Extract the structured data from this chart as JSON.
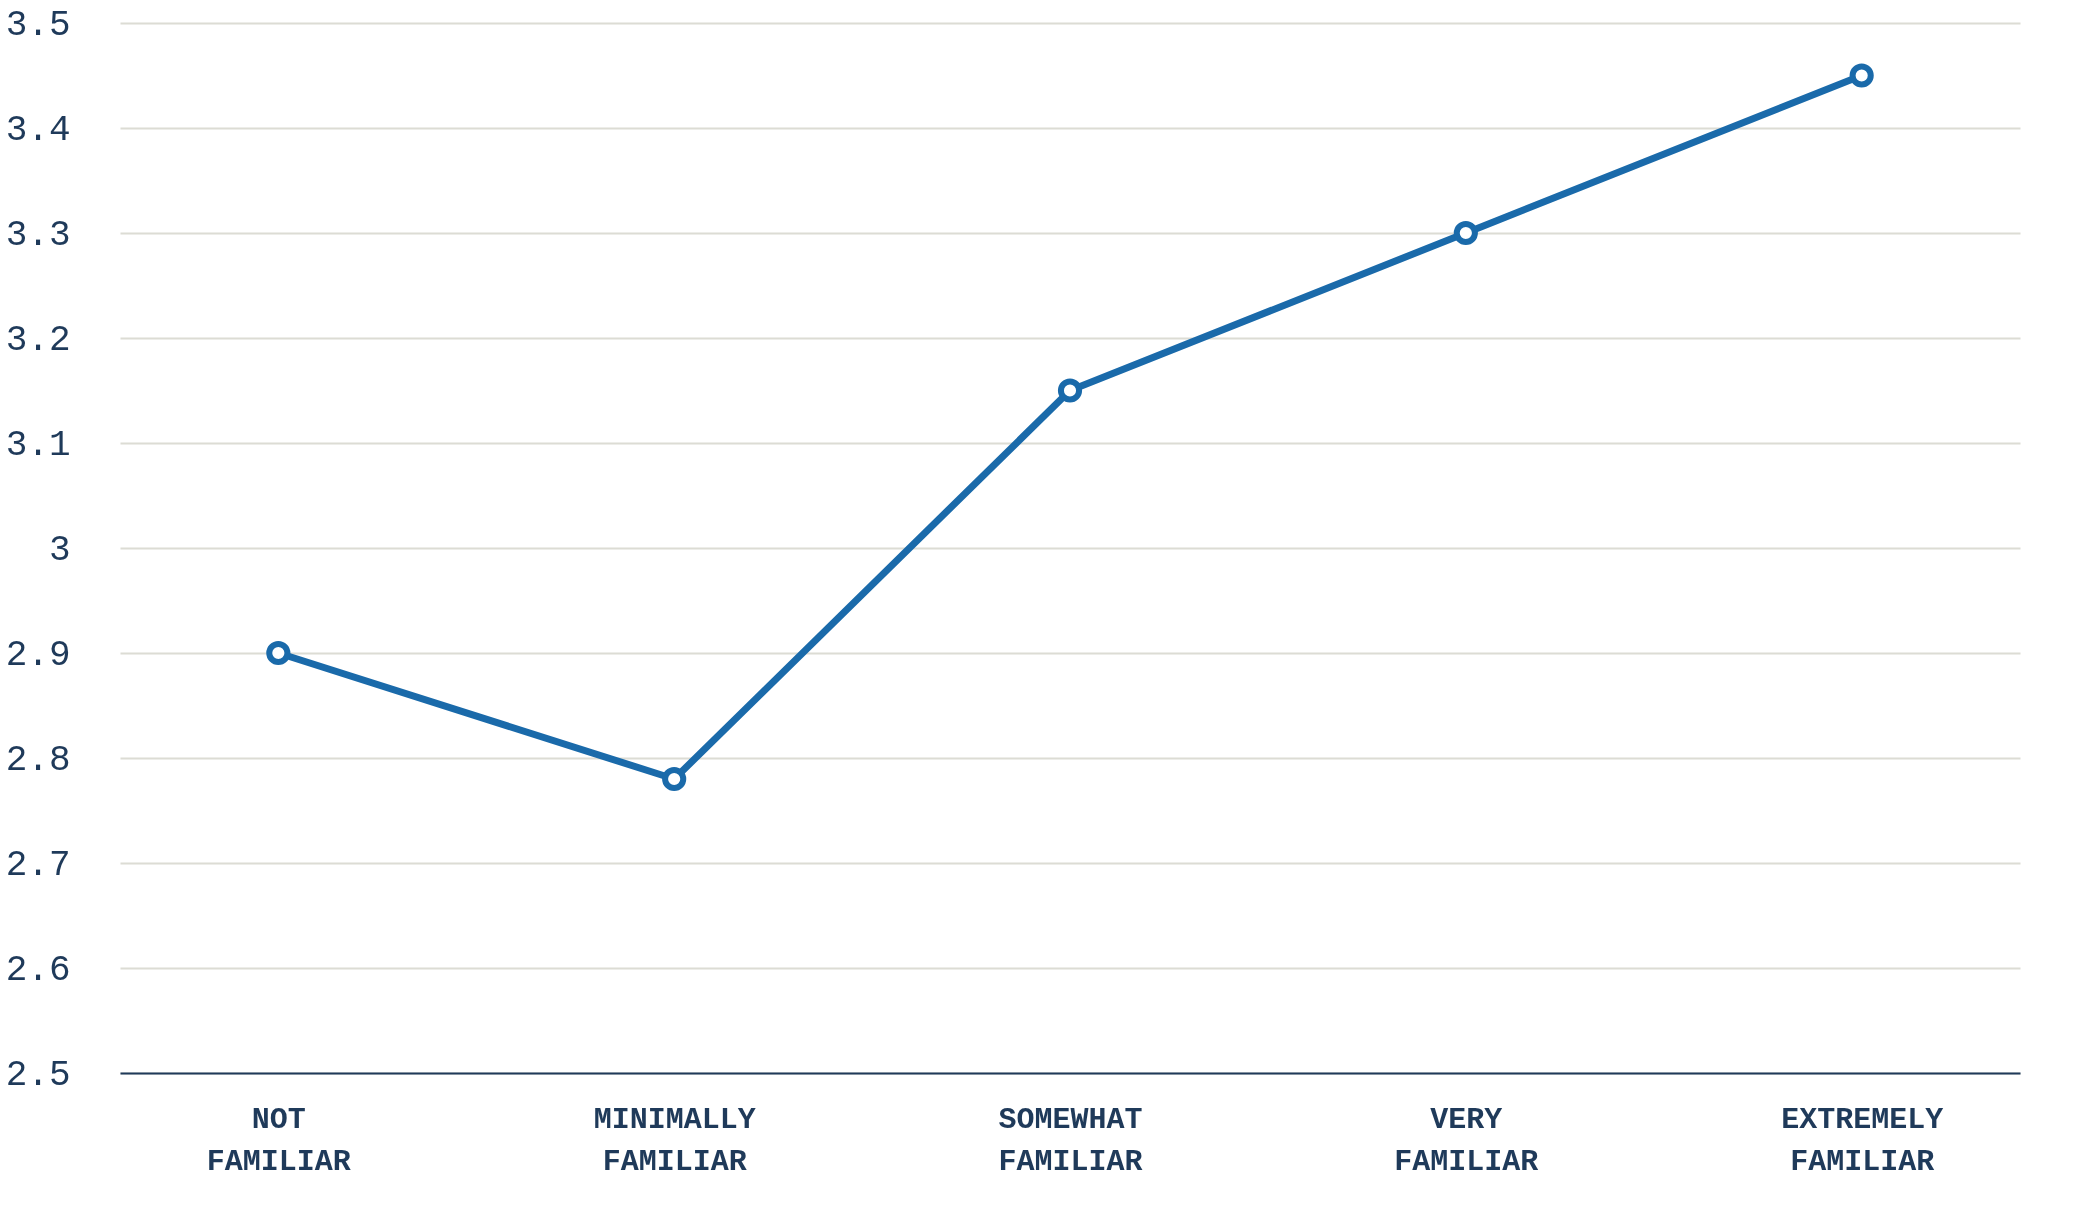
{
  "chart_data": {
    "type": "line",
    "categories": [
      "NOT FAMILIAR",
      "MINIMALLY FAMILIAR",
      "SOMEWHAT FAMILIAR",
      "VERY FAMILIAR",
      "EXTREMELY FAMILIAR"
    ],
    "series": [
      {
        "color": "#1a6aaa",
        "values": [
          2.9,
          2.78,
          3.15,
          3.3,
          3.45
        ]
      }
    ],
    "ylim": [
      2.5,
      3.5
    ],
    "yticks": [
      2.5,
      2.6,
      2.7,
      2.8,
      2.9,
      3,
      3.1,
      3.2,
      3.3,
      3.4,
      3.5
    ],
    "grid": "y",
    "marker": "circle",
    "line_style": "solid"
  }
}
